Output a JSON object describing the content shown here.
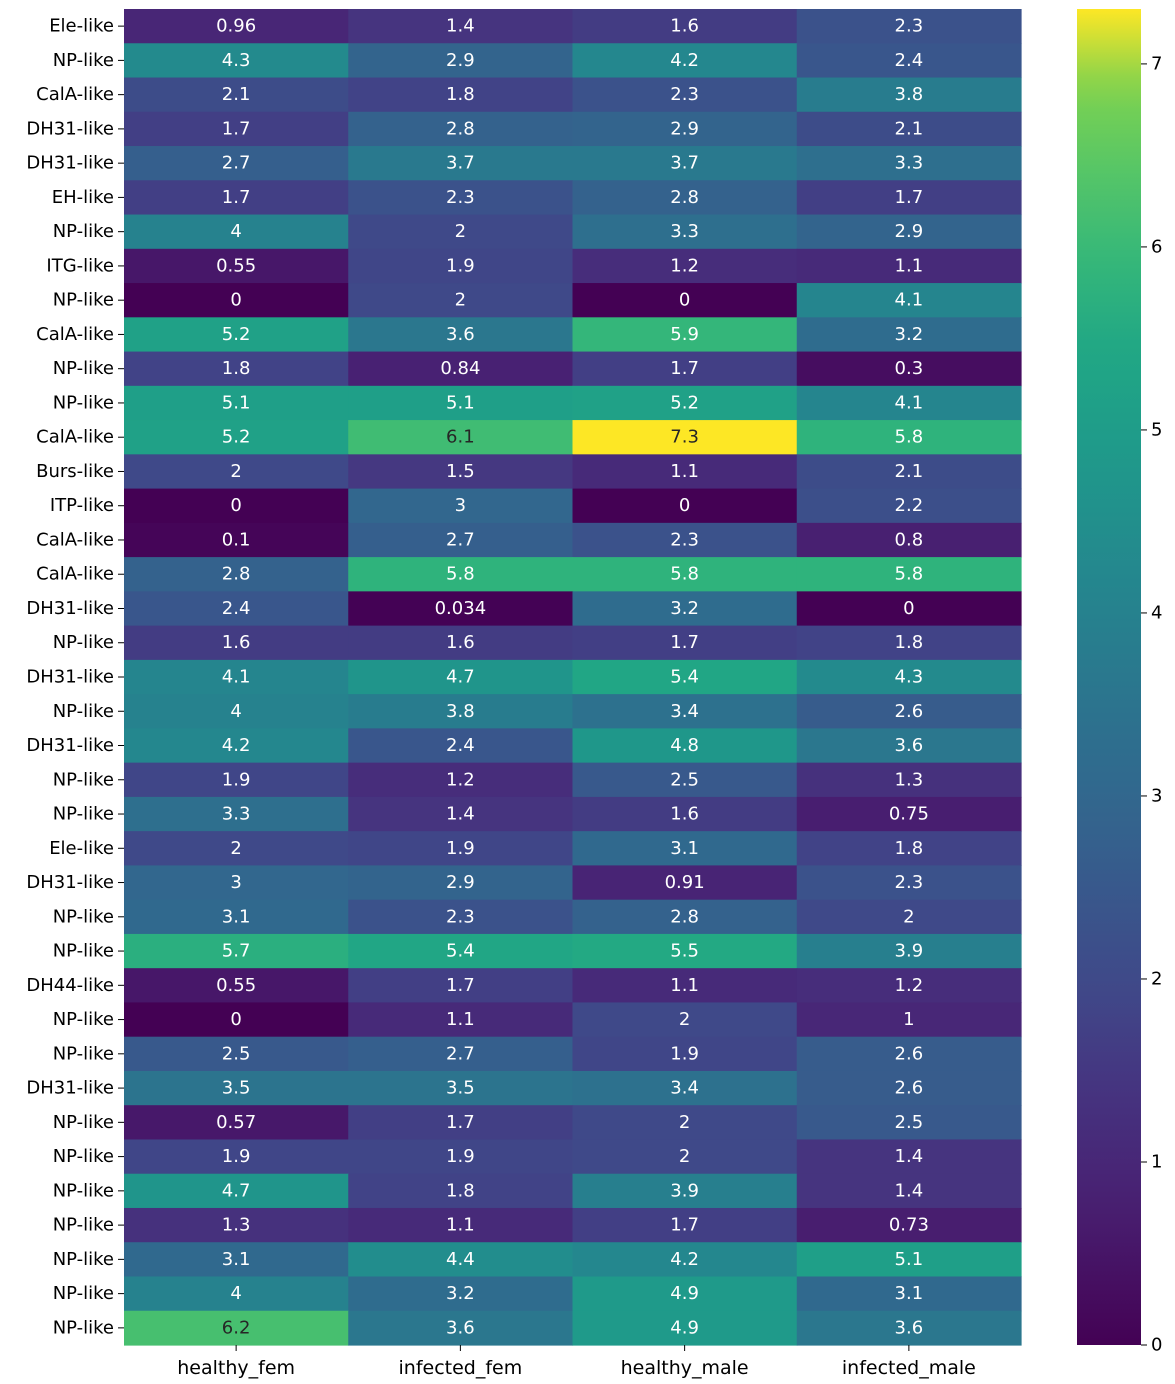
{
  "chart_data": {
    "type": "heatmap",
    "title": "",
    "xlabel": "",
    "ylabel": "",
    "columns": [
      "healthy_fem",
      "infected_fem",
      "healthy_male",
      "infected_male"
    ],
    "rows": [
      "Ele-like",
      "NP-like",
      "CalA-like",
      "DH31-like",
      "DH31-like",
      "EH-like",
      "NP-like",
      "ITG-like",
      "NP-like",
      "CalA-like",
      "NP-like",
      "NP-like",
      "CalA-like",
      "Burs-like",
      "ITP-like",
      "CalA-like",
      "CalA-like",
      "DH31-like",
      "NP-like",
      "DH31-like",
      "NP-like",
      "DH31-like",
      "NP-like",
      "NP-like",
      "Ele-like",
      "DH31-like",
      "NP-like",
      "NP-like",
      "DH44-like",
      "NP-like",
      "NP-like",
      "DH31-like",
      "NP-like",
      "NP-like",
      "NP-like",
      "NP-like",
      "NP-like",
      "NP-like",
      "NP-like"
    ],
    "values": [
      [
        0.96,
        1.4,
        1.6,
        2.3
      ],
      [
        4.3,
        2.9,
        4.2,
        2.4
      ],
      [
        2.1,
        1.8,
        2.3,
        3.8
      ],
      [
        1.7,
        2.8,
        2.9,
        2.1
      ],
      [
        2.7,
        3.7,
        3.7,
        3.3
      ],
      [
        1.7,
        2.3,
        2.8,
        1.7
      ],
      [
        4,
        2,
        3.3,
        2.9
      ],
      [
        0.55,
        1.9,
        1.2,
        1.1
      ],
      [
        0,
        2,
        0,
        4.1
      ],
      [
        5.2,
        3.6,
        5.9,
        3.2
      ],
      [
        1.8,
        0.84,
        1.7,
        0.3
      ],
      [
        5.1,
        5.1,
        5.2,
        4.1
      ],
      [
        5.2,
        6.1,
        7.3,
        5.8
      ],
      [
        2,
        1.5,
        1.1,
        2.1
      ],
      [
        0,
        3,
        0,
        2.2
      ],
      [
        0.1,
        2.7,
        2.3,
        0.8
      ],
      [
        2.8,
        5.8,
        5.8,
        5.8
      ],
      [
        2.4,
        0.034,
        3.2,
        0
      ],
      [
        1.6,
        1.6,
        1.7,
        1.8
      ],
      [
        4.1,
        4.7,
        5.4,
        4.3
      ],
      [
        4,
        3.8,
        3.4,
        2.6
      ],
      [
        4.2,
        2.4,
        4.8,
        3.6
      ],
      [
        1.9,
        1.2,
        2.5,
        1.3
      ],
      [
        3.3,
        1.4,
        1.6,
        0.75
      ],
      [
        2,
        1.9,
        3.1,
        1.8
      ],
      [
        3,
        2.9,
        0.91,
        2.3
      ],
      [
        3.1,
        2.3,
        2.8,
        2
      ],
      [
        5.7,
        5.4,
        5.5,
        3.9
      ],
      [
        0.55,
        1.7,
        1.1,
        1.2
      ],
      [
        0,
        1.1,
        2,
        1
      ],
      [
        2.5,
        2.7,
        1.9,
        2.6
      ],
      [
        3.5,
        3.5,
        3.4,
        2.6
      ],
      [
        0.57,
        1.7,
        2,
        2.5
      ],
      [
        1.9,
        1.9,
        2,
        1.4
      ],
      [
        4.7,
        1.8,
        3.9,
        1.4
      ],
      [
        1.3,
        1.1,
        1.7,
        0.73
      ],
      [
        3.1,
        4.4,
        4.2,
        5.1
      ],
      [
        4,
        3.2,
        4.9,
        3.1
      ],
      [
        6.2,
        3.6,
        4.9,
        3.6
      ]
    ],
    "colormap": "viridis",
    "vmin": 0,
    "vmax": 7.3,
    "colorbar_ticks": [
      0,
      1,
      2,
      3,
      4,
      5,
      6,
      7
    ],
    "annotations": true,
    "legend": "colorbar-right"
  }
}
